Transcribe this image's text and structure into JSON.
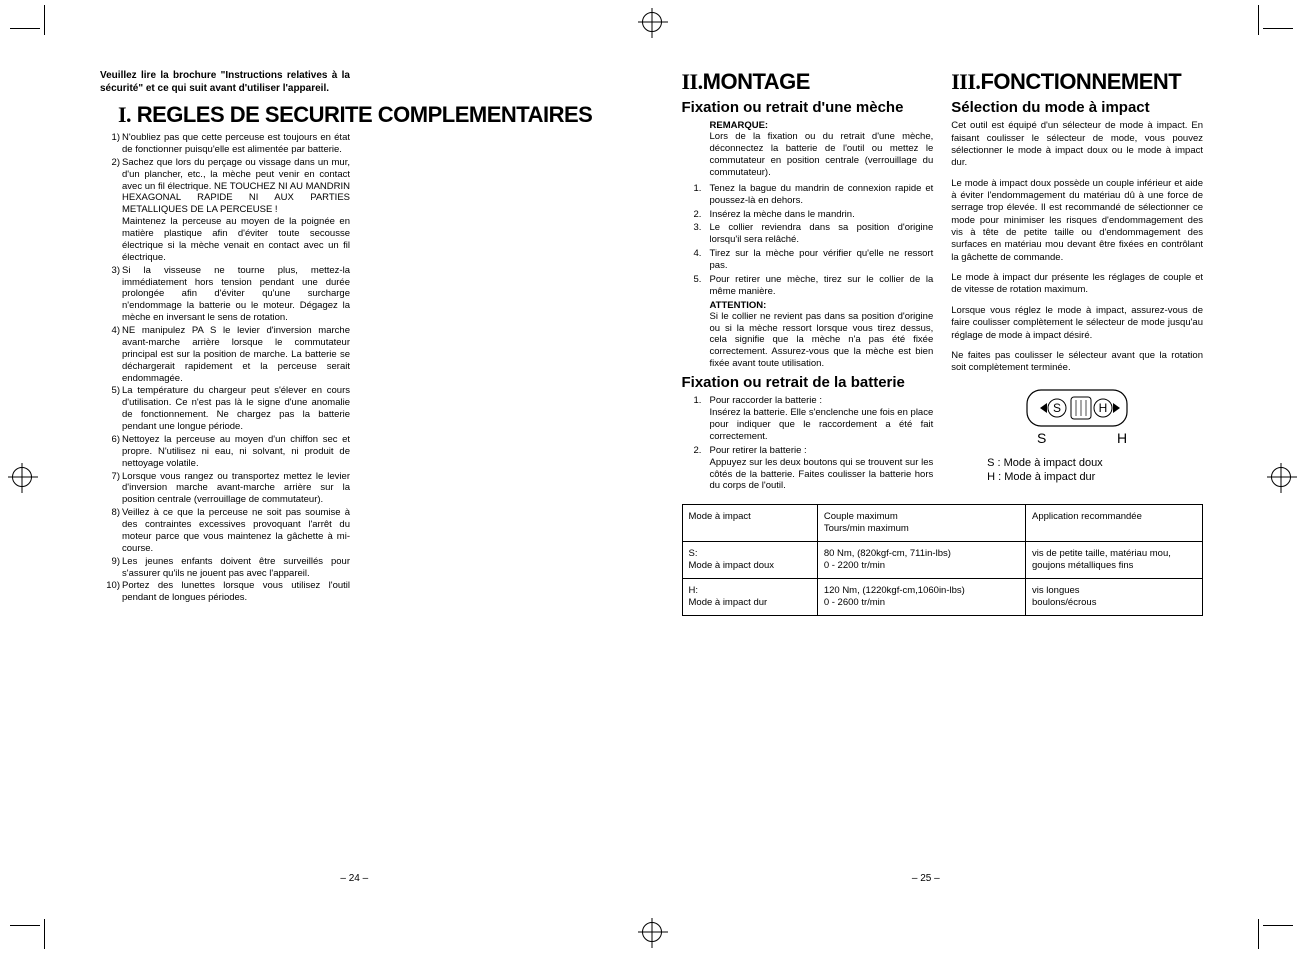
{
  "intro_text": "Veuillez lire la brochure \"Instructions relatives à la sécurité\" et ce qui suit avant d'utiliser l'appareil.",
  "section1": {
    "roman": "I.",
    "title": "REGLES DE SECURITE COMPLEMENTAIRES",
    "rules": [
      "N'oubliez pas que cette perceuse est toujours en état de fonctionner puisqu'elle est alimentée par batterie.",
      "Sachez que lors du perçage ou vissage dans un mur, d'un plancher, etc., la mèche peut venir en contact avec un fil électrique. NE TOUCHEZ NI AU MANDRIN HEXAGONAL RAPIDE NI AUX PARTIES METALLIQUES DE LA PERCEUSE !\nMaintenez la perceuse au moyen de la poignée en matière plastique afin d'éviter toute secousse électrique si la mèche venait en contact avec un fil électrique.",
      "Si la visseuse ne tourne plus, mettez-la immédiatement hors tension pendant une durée prolongée afin d'éviter qu'une surcharge n'endommage la batterie ou le moteur. Dégagez la mèche en inversant le sens de rotation.",
      "NE manipulez PA S le levier d'inversion marche avant-marche arrière lorsque le commutateur principal est sur la position de marche. La batterie se déchargerait rapidement et la perceuse serait endommagée.",
      "La température du chargeur peut s'élever en cours d'utilisation. Ce n'est pas là le signe d'une anomalie de fonctionnement. Ne chargez pas la batterie pendant une longue période.",
      "Nettoyez la perceuse au moyen d'un chiffon sec et propre. N'utilisez ni eau, ni solvant, ni produit de nettoyage volatile.",
      "Lorsque vous rangez ou transportez mettez le levier d'inversion marche avant-marche arrière sur la position centrale (verrouillage de commutateur).",
      "Veillez à ce que la perceuse ne soit pas soumise à des contraintes excessives provoquant l'arrêt du moteur parce que vous maintenez la gâchette à mi-course.",
      "Les jeunes enfants doivent être surveillés pour s'assurer qu'ils ne jouent pas avec l'appareil.",
      "Portez des lunettes lorsque vous utilisez l'outil pendant de longues périodes."
    ]
  },
  "section2": {
    "roman": "II.",
    "title": "MONTAGE",
    "sub1_title": "Fixation ou retrait d'une mèche",
    "note_label": "REMARQUE:",
    "note_body": "Lors de la fixation ou du retrait d'une mèche, déconnectez la batterie de l'outil ou mettez le commutateur en position centrale (verrouillage du commutateur).",
    "steps1": [
      "Tenez la bague du mandrin de connexion rapide et poussez-là en dehors.",
      "Insérez la mèche dans le mandrin.",
      "Le collier reviendra dans sa position d'origine lorsqu'il sera relâché.",
      "Tirez sur la mèche pour vérifier qu'elle ne ressort pas.",
      "Pour retirer une mèche, tirez sur le collier de la même manière."
    ],
    "attention_label": "ATTENTION:",
    "attention_body": "Si le collier ne revient pas dans sa position d'origine ou si la mèche ressort lorsque vous tirez dessus, cela signifie que la mèche n'a pas été fixée correctement. Assurez-vous que la mèche est bien fixée avant toute utilisation.",
    "sub2_title": "Fixation ou retrait de la batterie",
    "steps2": [
      "Pour raccorder la batterie :\nInsérez la batterie. Elle s'enclenche une fois en place pour indiquer que le raccordement a été fait correctement.",
      "Pour retirer la batterie :\nAppuyez sur les deux boutons qui se trouvent sur les côtés de la batterie. Faites coulisser la batterie hors du corps de l'outil."
    ]
  },
  "section3": {
    "roman": "III.",
    "title": "FONCTIONNEMENT",
    "sub1_title": "Sélection du mode à impact",
    "paras": [
      "Cet outil est équipé d'un sélecteur de mode à impact. En faisant coulisser le sélecteur de mode, vous pouvez sélectionner le mode à impact doux ou le mode à impact dur.",
      "Le mode à impact doux possède un couple inférieur et aide à éviter l'endommagement du matériau dû à une force de serrage trop élevée. Il est recommandé de sélectionner ce mode pour minimiser les risques d'endommagement des vis à tête de petite taille ou d'endommagement des surfaces en matériau mou devant être fixées en contrôlant la gâchette de commande.",
      "Le mode à impact dur présente les réglages de couple et de vitesse de rotation maximum.",
      "Lorsque vous réglez le mode à impact, assurez-vous de faire coulisser complètement le sélecteur de mode jusqu'au réglage de mode à impact désiré.",
      "Ne faites pas coulisser le sélecteur avant que la rotation soit complètement terminée."
    ],
    "legend_s": "S : Mode à impact doux",
    "legend_h": "H : Mode à impact dur"
  },
  "table": {
    "headers": [
      "Mode à impact",
      "Couple maximum\nTours/min maximum",
      "Application recommandée"
    ],
    "rows": [
      [
        "S:\nMode à impact doux",
        "80 Nm, (820kgf-cm, 711in-lbs)\n0 - 2200 tr/min",
        "vis de petite taille, matériau mou, goujons métalliques fins"
      ],
      [
        "H:\nMode à impact dur",
        "120 Nm, (1220kgf-cm,1060in-lbs)\n0 - 2600 tr/min",
        "vis longues\nboulons/écrous"
      ]
    ],
    "col_widths": [
      "26%",
      "40%",
      "34%"
    ]
  },
  "page_numbers": {
    "left": "– 24 –",
    "right": "– 25 –"
  },
  "colors": {
    "text": "#000000",
    "bg": "#ffffff",
    "border": "#000000"
  }
}
